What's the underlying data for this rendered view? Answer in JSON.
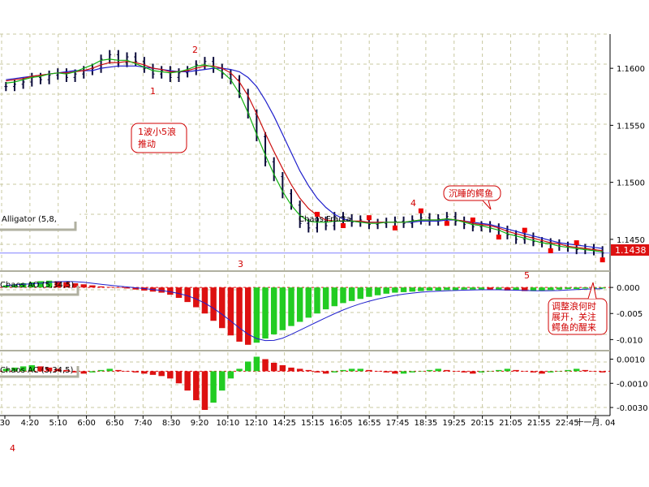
{
  "chart_data": [
    {
      "type": "line",
      "panel": "price",
      "title": "Alligator (5,8,",
      "overlay_label": "Chaos Fracta",
      "price_tag": "1.1438",
      "ylim": [
        1.1425,
        1.163
      ],
      "yticks": [
        "1.1600",
        "1.1550",
        "1.1500",
        "1.1450"
      ],
      "xticks": [
        "30",
        "4:20",
        "5:10",
        "6:00",
        "6:50",
        "7:40",
        "8:30",
        "9:20",
        "10:10",
        "12:10",
        "14:25",
        "15:15",
        "16:05",
        "16:55",
        "17:45",
        "18:35",
        "19:25",
        "20:15",
        "21:05",
        "21:55",
        "22:45",
        "十一月. 04"
      ],
      "close": [
        1.1584,
        1.1586,
        1.1588,
        1.1592,
        1.159,
        1.1594,
        1.1596,
        1.1592,
        1.1595,
        1.1598,
        1.16,
        1.1608,
        1.1612,
        1.1605,
        1.161,
        1.1606,
        1.16,
        1.1595,
        1.1598,
        1.1592,
        1.1596,
        1.1598,
        1.1603,
        1.1606,
        1.16,
        1.1595,
        1.159,
        1.1578,
        1.156,
        1.154,
        1.1518,
        1.1505,
        1.149,
        1.148,
        1.1464,
        1.146,
        1.1466,
        1.1462,
        1.147,
        1.1468,
        1.1465,
        1.1467,
        1.1463,
        1.1464,
        1.1465,
        1.1466,
        1.1464,
        1.1467,
        1.1469,
        1.1466,
        1.1468,
        1.147,
        1.1466,
        1.1463,
        1.1461,
        1.1462,
        1.146,
        1.1458,
        1.1454,
        1.145,
        1.1452,
        1.1448,
        1.1447,
        1.1446,
        1.1444,
        1.1443,
        1.1441,
        1.1442,
        1.144,
        1.1438
      ],
      "series": [
        {
          "name": "Jaw",
          "color": "#1f1fcc",
          "values": [
            1.159,
            1.1591,
            1.1592,
            1.1593,
            1.1594,
            1.1595,
            1.1596,
            1.1597,
            1.1598,
            1.1598,
            1.1598,
            1.16,
            1.1601,
            1.1602,
            1.1602,
            1.1602,
            1.1601,
            1.16,
            1.1599,
            1.1598,
            1.1597,
            1.1597,
            1.1598,
            1.1599,
            1.16,
            1.16,
            1.1599,
            1.1597,
            1.1592,
            1.1584,
            1.1572,
            1.1558,
            1.1542,
            1.1526,
            1.151,
            1.1497,
            1.1486,
            1.1478,
            1.1472,
            1.1468,
            1.1466,
            1.1465,
            1.1465,
            1.1465,
            1.1465,
            1.1465,
            1.1465,
            1.1465,
            1.1466,
            1.1466,
            1.1466,
            1.1467,
            1.1467,
            1.1466,
            1.1465,
            1.1464,
            1.1463,
            1.1461,
            1.1459,
            1.1457,
            1.1455,
            1.1453,
            1.1451,
            1.1449,
            1.1447,
            1.1446,
            1.1445,
            1.1444,
            1.1443,
            1.1442
          ]
        },
        {
          "name": "Teeth",
          "color": "#cc1010",
          "values": [
            1.1589,
            1.159,
            1.1591,
            1.1593,
            1.1594,
            1.1595,
            1.1596,
            1.1596,
            1.1597,
            1.1598,
            1.16,
            1.1603,
            1.1605,
            1.1605,
            1.1606,
            1.1605,
            1.1603,
            1.16,
            1.1599,
            1.1597,
            1.1597,
            1.1598,
            1.16,
            1.1602,
            1.1602,
            1.16,
            1.1596,
            1.1588,
            1.1576,
            1.156,
            1.1543,
            1.1527,
            1.1512,
            1.1498,
            1.1486,
            1.1477,
            1.1471,
            1.1467,
            1.1466,
            1.1466,
            1.1466,
            1.1466,
            1.1465,
            1.1465,
            1.1465,
            1.1465,
            1.1465,
            1.1466,
            1.1467,
            1.1467,
            1.1467,
            1.1468,
            1.1467,
            1.1466,
            1.1464,
            1.1463,
            1.1462,
            1.146,
            1.1457,
            1.1455,
            1.1453,
            1.1451,
            1.1449,
            1.1447,
            1.1446,
            1.1444,
            1.1443,
            1.1442,
            1.1441,
            1.144
          ]
        },
        {
          "name": "Lips",
          "color": "#10b010",
          "values": [
            1.1587,
            1.1588,
            1.159,
            1.1592,
            1.1593,
            1.1595,
            1.1596,
            1.1595,
            1.1597,
            1.16,
            1.1603,
            1.1607,
            1.1608,
            1.1607,
            1.1607,
            1.1604,
            1.1601,
            1.1598,
            1.1597,
            1.1596,
            1.1597,
            1.1599,
            1.1602,
            1.1603,
            1.1601,
            1.1597,
            1.159,
            1.1578,
            1.1561,
            1.1542,
            1.1524,
            1.1507,
            1.1492,
            1.148,
            1.1471,
            1.1466,
            1.1465,
            1.1465,
            1.1466,
            1.1466,
            1.1466,
            1.1465,
            1.1464,
            1.1464,
            1.1465,
            1.1465,
            1.1465,
            1.1466,
            1.1467,
            1.1467,
            1.1467,
            1.1468,
            1.1467,
            1.1465,
            1.1463,
            1.1462,
            1.146,
            1.1458,
            1.1455,
            1.1453,
            1.1451,
            1.1449,
            1.1447,
            1.1446,
            1.1444,
            1.1443,
            1.1442,
            1.1441,
            1.144,
            1.1439
          ]
        }
      ],
      "annotations": [
        {
          "text": "1",
          "kind": "wave"
        },
        {
          "text": "2",
          "kind": "wave"
        },
        {
          "text": "3",
          "kind": "wave"
        },
        {
          "text": "4",
          "kind": "wave"
        },
        {
          "text": "5",
          "kind": "wave"
        },
        {
          "text": "1波小5浪",
          "kind": "callout"
        },
        {
          "text": "推动",
          "kind": "callout"
        },
        {
          "text": "沉睡的鳄鱼",
          "kind": "callout"
        }
      ]
    },
    {
      "type": "bar",
      "panel": "ao",
      "title": "Chaos AO (5,34,5)",
      "yticks": [
        "0.000",
        "-0.005",
        "-0.010"
      ],
      "ylim": [
        -0.0115,
        0.0022
      ],
      "values": [
        0.0004,
        0.0006,
        0.0008,
        0.001,
        0.0012,
        0.0013,
        0.0012,
        0.001,
        0.0008,
        0.0006,
        0.0004,
        0.0002,
        0.0001,
        0.0,
        -0.0002,
        -0.0004,
        -0.0006,
        -0.0008,
        -0.001,
        -0.0014,
        -0.002,
        -0.0028,
        -0.0038,
        -0.005,
        -0.0064,
        -0.0078,
        -0.0092,
        -0.0104,
        -0.011,
        -0.0106,
        -0.0098,
        -0.009,
        -0.0082,
        -0.0074,
        -0.0066,
        -0.0058,
        -0.005,
        -0.0042,
        -0.0036,
        -0.003,
        -0.0026,
        -0.0022,
        -0.0018,
        -0.0015,
        -0.0012,
        -0.001,
        -0.0009,
        -0.0008,
        -0.0007,
        -0.0006,
        -0.0006,
        -0.0005,
        -0.0005,
        -0.0004,
        -0.0004,
        -0.0004,
        -0.0005,
        -0.0005,
        -0.0006,
        -0.0006,
        -0.0007,
        -0.0007,
        -0.0006,
        -0.0005,
        -0.0004,
        -0.0003,
        -0.0003,
        -0.0002,
        -0.0002,
        -0.0002
      ],
      "callout": [
        "调整浪何时",
        "展开，关注",
        "鳄鱼的醒来"
      ]
    },
    {
      "type": "bar",
      "panel": "ac",
      "title": "Chaos AC (5,34,5)",
      "yticks": [
        "0.0010",
        "-0.0010",
        "-0.0030"
      ],
      "ylim": [
        -0.0034,
        0.0013
      ],
      "values": [
        0.0002,
        0.0003,
        0.0004,
        0.0005,
        0.0004,
        0.0003,
        0.0002,
        0.0001,
        -0.0001,
        -0.0002,
        -0.0001,
        0.0001,
        0.0002,
        0.0001,
        0.0,
        -0.0001,
        -0.0002,
        -0.0003,
        -0.0004,
        -0.0006,
        -0.001,
        -0.0016,
        -0.0024,
        -0.0032,
        -0.0026,
        -0.0016,
        -0.0006,
        0.0002,
        0.0008,
        0.0012,
        0.001,
        0.0007,
        0.0005,
        0.0003,
        0.0002,
        0.0001,
        -0.0001,
        -0.0002,
        -0.0001,
        0.0001,
        0.0002,
        0.0002,
        0.0001,
        0.0,
        -0.0001,
        -0.0002,
        -0.0002,
        -0.0001,
        0.0,
        0.0001,
        0.0002,
        0.0001,
        0.0,
        -0.0001,
        -0.0002,
        -0.0001,
        0.0,
        0.0001,
        0.0002,
        0.0001,
        0.0,
        -0.0001,
        -0.0002,
        -0.0001,
        0.0,
        0.0001,
        0.0002,
        0.0001,
        0.0,
        -0.0001
      ]
    }
  ],
  "colors": {
    "grid": "#c8c8a0",
    "up_bar": "#22cc22",
    "down_bar": "#dd1111",
    "fractal": "#ee0000",
    "panel_sep": "#b0b0a0",
    "price_tag_bg": "#dd1111",
    "price_line": "#8080ff",
    "wave": "#d00000",
    "ao_signal": "#1f1fcc"
  },
  "footer_mark": "4"
}
